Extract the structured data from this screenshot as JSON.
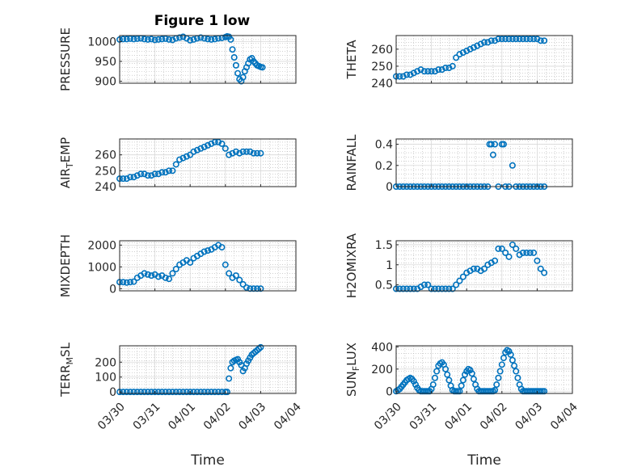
{
  "figure_title": "Figure 1 low",
  "colors": {
    "marker": "#0072BD",
    "grid": "#b3b3b3",
    "axis": "#262626"
  },
  "chart_data": [
    {
      "type": "scatter",
      "title": "Figure 1 low",
      "ylabel": "PRESSURE",
      "ylabel_sub": null,
      "xlim": [
        "03/30",
        "04/04"
      ],
      "ylim": [
        895,
        1015
      ],
      "yticks": [
        900,
        950,
        1000
      ],
      "ytick_labels": [
        "900",
        "950",
        "1000"
      ],
      "xtick_labels": [],
      "xlabel": "",
      "x_days": [
        0,
        0.1,
        0.2,
        0.3,
        0.4,
        0.5,
        0.6,
        0.7,
        0.8,
        0.9,
        1.0,
        1.1,
        1.2,
        1.3,
        1.4,
        1.5,
        1.6,
        1.7,
        1.8,
        1.9,
        2.0,
        2.1,
        2.2,
        2.3,
        2.4,
        2.5,
        2.6,
        2.7,
        2.8,
        2.9,
        3.0,
        3.05,
        3.1,
        3.15,
        3.2,
        3.25,
        3.3,
        3.35,
        3.4,
        3.45,
        3.5,
        3.55,
        3.6,
        3.65,
        3.7,
        3.75,
        3.8,
        3.85,
        3.9,
        3.95,
        4.0,
        4.05,
        4.1,
        4.15,
        4.2,
        4.25,
        4.3
      ],
      "y": [
        1005,
        1006,
        1006,
        1007,
        1006,
        1007,
        1008,
        1006,
        1005,
        1006,
        1004,
        1005,
        1006,
        1007,
        1005,
        1004,
        1008,
        1010,
        1012,
        1008,
        1003,
        1005,
        1008,
        1010,
        1008,
        1006,
        1005,
        1006,
        1008,
        1009,
        1011,
        1013,
        1012,
        1005,
        980,
        960,
        940,
        920,
        905,
        900,
        910,
        925,
        935,
        945,
        955,
        958,
        950,
        945,
        940,
        938,
        936,
        935,
        null,
        null,
        null,
        null,
        null
      ]
    },
    {
      "type": "scatter",
      "title": "",
      "ylabel": "THETA",
      "ylabel_sub": null,
      "xlim": [
        "03/30",
        "04/04"
      ],
      "ylim": [
        240,
        268
      ],
      "yticks": [
        240,
        250,
        260
      ],
      "ytick_labels": [
        "240",
        "250",
        "260"
      ],
      "xtick_labels": [],
      "xlabel": "",
      "x_days": [
        0,
        0.1,
        0.2,
        0.3,
        0.4,
        0.5,
        0.6,
        0.7,
        0.8,
        0.9,
        1.0,
        1.1,
        1.2,
        1.3,
        1.4,
        1.5,
        1.6,
        1.7,
        1.8,
        1.9,
        2.0,
        2.1,
        2.2,
        2.3,
        2.4,
        2.5,
        2.6,
        2.7,
        2.8,
        2.9,
        3.0,
        3.1,
        3.2,
        3.3,
        3.4,
        3.5,
        3.6,
        3.7,
        3.8,
        3.9,
        4.0,
        4.1,
        4.2
      ],
      "y": [
        244,
        244,
        244,
        245,
        245,
        246,
        247,
        248,
        247,
        247,
        247,
        247,
        248,
        248,
        249,
        249,
        250,
        255,
        257,
        258,
        259,
        260,
        261,
        262,
        263,
        264,
        264,
        265,
        265,
        266,
        266,
        266,
        266,
        266,
        266,
        266,
        266,
        266,
        266,
        266,
        266,
        265,
        265
      ]
    },
    {
      "type": "scatter",
      "title": "",
      "ylabel": "AIR",
      "ylabel_sub": "T",
      "ylabel_rest": "EMP",
      "xlim": [
        "03/30",
        "04/04"
      ],
      "ylim": [
        240,
        270
      ],
      "yticks": [
        240,
        250,
        260
      ],
      "ytick_labels": [
        "240",
        "250",
        "260"
      ],
      "xtick_labels": [],
      "xlabel": "",
      "x_days": [
        0,
        0.1,
        0.2,
        0.3,
        0.4,
        0.5,
        0.6,
        0.7,
        0.8,
        0.9,
        1.0,
        1.1,
        1.2,
        1.3,
        1.4,
        1.5,
        1.6,
        1.7,
        1.8,
        1.9,
        2.0,
        2.1,
        2.2,
        2.3,
        2.4,
        2.5,
        2.6,
        2.7,
        2.8,
        2.9,
        3.0,
        3.1,
        3.2,
        3.3,
        3.4,
        3.5,
        3.6,
        3.7,
        3.8,
        3.9,
        4.0
      ],
      "y": [
        245,
        245,
        245,
        246,
        246,
        247,
        248,
        248,
        247,
        247,
        248,
        248,
        249,
        249,
        250,
        250,
        254,
        257,
        258,
        259,
        260,
        262,
        263,
        264,
        265,
        266,
        267,
        268,
        268,
        267,
        264,
        260,
        261,
        262,
        261,
        262,
        262,
        262,
        261,
        261,
        261
      ]
    },
    {
      "type": "scatter",
      "title": "",
      "ylabel": "RAINFALL",
      "ylabel_sub": null,
      "xlim": [
        "03/30",
        "04/04"
      ],
      "ylim": [
        0,
        0.45
      ],
      "yticks": [
        0,
        0.2,
        0.4
      ],
      "ytick_labels": [
        "0",
        "0.2",
        "0.4"
      ],
      "xtick_labels": [],
      "xlabel": "",
      "x_days": [
        0,
        0.1,
        0.2,
        0.3,
        0.4,
        0.5,
        0.6,
        0.7,
        0.8,
        0.9,
        1.0,
        1.1,
        1.2,
        1.3,
        1.4,
        1.5,
        1.6,
        1.7,
        1.8,
        1.9,
        2.0,
        2.1,
        2.2,
        2.3,
        2.4,
        2.5,
        2.6,
        2.65,
        2.7,
        2.75,
        2.8,
        2.9,
        3.0,
        3.05,
        3.1,
        3.2,
        3.3,
        3.4,
        3.5,
        3.6,
        3.7,
        3.8,
        3.9,
        4.0,
        4.1,
        4.2
      ],
      "y": [
        0,
        0,
        0,
        0,
        0,
        0,
        0,
        0,
        0,
        0,
        0,
        0,
        0,
        0,
        0,
        0,
        0,
        0,
        0,
        0,
        0,
        0,
        0,
        0,
        0,
        0,
        0,
        0.4,
        0.4,
        0.3,
        0.4,
        0,
        0.4,
        0.4,
        0,
        0,
        0.2,
        0,
        0,
        0,
        0,
        0,
        0,
        0,
        0,
        0
      ]
    },
    {
      "type": "scatter",
      "title": "",
      "ylabel": "MIXDEPTH",
      "ylabel_sub": null,
      "xlim": [
        "03/30",
        "04/04"
      ],
      "ylim": [
        -100,
        2200
      ],
      "yticks": [
        0,
        1000,
        2000
      ],
      "ytick_labels": [
        "0",
        "1000",
        "2000"
      ],
      "xtick_labels": [],
      "xlabel": "",
      "x_days": [
        0,
        0.1,
        0.2,
        0.3,
        0.4,
        0.5,
        0.6,
        0.7,
        0.8,
        0.9,
        1.0,
        1.1,
        1.2,
        1.3,
        1.4,
        1.5,
        1.6,
        1.7,
        1.8,
        1.9,
        2.0,
        2.1,
        2.2,
        2.3,
        2.4,
        2.5,
        2.6,
        2.7,
        2.8,
        2.9,
        3.0,
        3.1,
        3.2,
        3.3,
        3.4,
        3.5,
        3.6,
        3.7,
        3.8,
        3.9,
        4.0
      ],
      "y": [
        300,
        300,
        280,
        300,
        320,
        500,
        600,
        700,
        650,
        600,
        650,
        550,
        600,
        500,
        450,
        700,
        900,
        1100,
        1200,
        1300,
        1200,
        1400,
        1500,
        1600,
        1700,
        1750,
        1800,
        1900,
        2000,
        1900,
        1100,
        700,
        500,
        600,
        400,
        200,
        50,
        0,
        0,
        0,
        0
      ]
    },
    {
      "type": "scatter",
      "title": "",
      "ylabel": "H2OMIXRA",
      "ylabel_sub": null,
      "xlim": [
        "03/30",
        "04/04"
      ],
      "ylim": [
        0.35,
        1.6
      ],
      "yticks": [
        0.5,
        1,
        1.5
      ],
      "ytick_labels": [
        "0.5",
        "1",
        "1.5"
      ],
      "xtick_labels": [],
      "xlabel": "",
      "x_days": [
        0,
        0.1,
        0.2,
        0.3,
        0.4,
        0.5,
        0.6,
        0.7,
        0.8,
        0.9,
        1.0,
        1.1,
        1.2,
        1.3,
        1.4,
        1.5,
        1.6,
        1.7,
        1.8,
        1.9,
        2.0,
        2.1,
        2.2,
        2.3,
        2.4,
        2.5,
        2.6,
        2.7,
        2.8,
        2.9,
        3.0,
        3.1,
        3.2,
        3.3,
        3.4,
        3.5,
        3.6,
        3.7,
        3.8,
        3.9,
        4.0,
        4.1,
        4.2
      ],
      "y": [
        0.4,
        0.4,
        0.4,
        0.4,
        0.4,
        0.4,
        0.4,
        0.45,
        0.5,
        0.5,
        0.4,
        0.4,
        0.4,
        0.4,
        0.4,
        0.4,
        0.4,
        0.5,
        0.6,
        0.7,
        0.8,
        0.85,
        0.9,
        0.9,
        0.85,
        0.9,
        1.0,
        1.05,
        1.1,
        1.4,
        1.4,
        1.3,
        1.2,
        1.5,
        1.4,
        1.25,
        1.3,
        1.3,
        1.3,
        1.3,
        1.1,
        0.9,
        0.8
      ]
    },
    {
      "type": "scatter",
      "title": "",
      "ylabel": "TERR",
      "ylabel_sub": "M",
      "ylabel_rest": "SL",
      "xlim": [
        "03/30",
        "04/04"
      ],
      "ylim": [
        -10,
        310
      ],
      "yticks": [
        0,
        100,
        200
      ],
      "ytick_labels": [
        "0",
        "100",
        "200"
      ],
      "xtick_labels": [
        "03/30",
        "03/31",
        "04/01",
        "04/02",
        "04/03",
        "04/04"
      ],
      "xlabel": "Time",
      "x_days": [
        0,
        0.1,
        0.2,
        0.3,
        0.4,
        0.5,
        0.6,
        0.7,
        0.8,
        0.9,
        1.0,
        1.1,
        1.2,
        1.3,
        1.4,
        1.5,
        1.6,
        1.7,
        1.8,
        1.9,
        2.0,
        2.1,
        2.2,
        2.3,
        2.4,
        2.5,
        2.6,
        2.7,
        2.8,
        2.9,
        3.0,
        3.05,
        3.1,
        3.15,
        3.2,
        3.25,
        3.3,
        3.35,
        3.4,
        3.45,
        3.5,
        3.55,
        3.6,
        3.65,
        3.7,
        3.75,
        3.8,
        3.85,
        3.9,
        3.95,
        4.0
      ],
      "y": [
        0,
        0,
        0,
        0,
        0,
        0,
        0,
        0,
        0,
        0,
        0,
        0,
        0,
        0,
        0,
        0,
        0,
        0,
        0,
        0,
        0,
        0,
        0,
        0,
        0,
        0,
        0,
        0,
        0,
        0,
        0,
        0,
        90,
        160,
        200,
        210,
        215,
        220,
        200,
        180,
        140,
        160,
        190,
        210,
        230,
        250,
        260,
        270,
        280,
        290,
        300
      ]
    },
    {
      "type": "scatter",
      "title": "",
      "ylabel": "SUN",
      "ylabel_sub": "F",
      "ylabel_rest": "LUX",
      "xlim": [
        "03/30",
        "04/04"
      ],
      "ylim": [
        -20,
        410
      ],
      "yticks": [
        0,
        200,
        400
      ],
      "ytick_labels": [
        "0",
        "200",
        "400"
      ],
      "xtick_labels": [
        "03/30",
        "03/31",
        "04/01",
        "04/02",
        "04/03",
        "04/04"
      ],
      "xlabel": "Time",
      "x_days": [
        0,
        0.05,
        0.1,
        0.15,
        0.2,
        0.25,
        0.3,
        0.35,
        0.4,
        0.45,
        0.5,
        0.55,
        0.6,
        0.65,
        0.7,
        0.75,
        0.8,
        0.85,
        0.9,
        0.95,
        1.0,
        1.05,
        1.1,
        1.15,
        1.2,
        1.25,
        1.3,
        1.35,
        1.4,
        1.45,
        1.5,
        1.55,
        1.6,
        1.65,
        1.7,
        1.75,
        1.8,
        1.85,
        1.9,
        1.95,
        2.0,
        2.05,
        2.1,
        2.15,
        2.2,
        2.25,
        2.3,
        2.35,
        2.4,
        2.45,
        2.5,
        2.55,
        2.6,
        2.65,
        2.7,
        2.75,
        2.8,
        2.85,
        2.9,
        2.95,
        3.0,
        3.05,
        3.1,
        3.15,
        3.2,
        3.25,
        3.3,
        3.35,
        3.4,
        3.45,
        3.5,
        3.55,
        3.6,
        3.65,
        3.7,
        3.75,
        3.8,
        3.85,
        3.9,
        3.95,
        4.0,
        4.05,
        4.1,
        4.15,
        4.2
      ],
      "y": [
        0,
        10,
        20,
        40,
        60,
        80,
        100,
        110,
        120,
        110,
        90,
        60,
        30,
        10,
        0,
        0,
        0,
        0,
        0,
        0,
        20,
        60,
        120,
        180,
        230,
        250,
        260,
        240,
        200,
        150,
        100,
        50,
        10,
        0,
        0,
        0,
        0,
        50,
        100,
        150,
        180,
        200,
        190,
        160,
        110,
        60,
        20,
        0,
        0,
        0,
        0,
        0,
        0,
        0,
        0,
        0,
        10,
        60,
        120,
        180,
        240,
        300,
        350,
        370,
        360,
        330,
        280,
        230,
        180,
        120,
        60,
        20,
        0,
        0,
        0,
        0,
        0,
        0,
        0,
        0,
        0,
        0,
        0,
        0,
        0
      ]
    }
  ]
}
